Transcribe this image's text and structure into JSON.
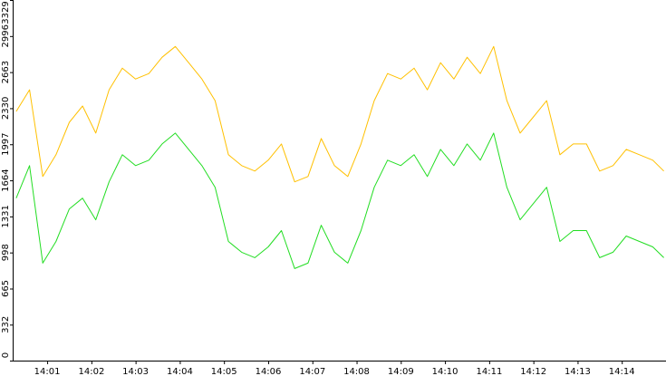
{
  "chart_data": {
    "type": "line",
    "title": "",
    "xlabel": "",
    "ylabel": "",
    "ylim": [
      0,
      3329
    ],
    "yticks": [
      0,
      332,
      665,
      998,
      1331,
      1664,
      1997,
      2330,
      2663,
      2996,
      3329
    ],
    "xlim_minutes": [
      840.24,
      855.0
    ],
    "xticks": [
      {
        "label": "14:01",
        "minute": 841
      },
      {
        "label": "14:02",
        "minute": 842
      },
      {
        "label": "14:03",
        "minute": 843
      },
      {
        "label": "14:04",
        "minute": 844
      },
      {
        "label": "14:05",
        "minute": 845
      },
      {
        "label": "14:06",
        "minute": 846
      },
      {
        "label": "14:07",
        "minute": 847
      },
      {
        "label": "14:08",
        "minute": 848
      },
      {
        "label": "14:09",
        "minute": 849
      },
      {
        "label": "14:10",
        "minute": 850
      },
      {
        "label": "14:11",
        "minute": 851
      },
      {
        "label": "14:12",
        "minute": 852
      },
      {
        "label": "14:13",
        "minute": 853
      },
      {
        "label": "14:14",
        "minute": 854
      }
    ],
    "grid": false,
    "legend": "none",
    "series": [
      {
        "color": "#ffc000",
        "minute": [
          840.3,
          840.6,
          840.9,
          841.2,
          841.5,
          841.8,
          842.1,
          842.4,
          842.7,
          843.0,
          843.3,
          843.6,
          843.9,
          844.2,
          844.5,
          844.8,
          845.1,
          845.4,
          845.7,
          846.0,
          846.3,
          846.6,
          846.9,
          847.2,
          847.5,
          847.8,
          848.1,
          848.4,
          848.7,
          849.0,
          849.3,
          849.6,
          849.9,
          850.2,
          850.5,
          850.8,
          851.1,
          851.4,
          851.7,
          852.0,
          852.3,
          852.6,
          852.9,
          853.2,
          853.5,
          853.8,
          854.1,
          854.4,
          854.7,
          854.95
        ],
        "values": [
          2300,
          2500,
          1700,
          1900,
          2200,
          2350,
          2100,
          2500,
          2700,
          2600,
          2650,
          2800,
          2900,
          2750,
          2600,
          2400,
          1900,
          1800,
          1750,
          1850,
          2000,
          1650,
          1700,
          2050,
          1800,
          1700,
          2000,
          2400,
          2650,
          2600,
          2700,
          2500,
          2750,
          2600,
          2800,
          2650,
          2900,
          2400,
          2100,
          2250,
          2400,
          1900,
          2000,
          2000,
          1750,
          1800,
          1950,
          1900,
          1850,
          1750
        ]
      },
      {
        "color": "#22dd22",
        "minute": [
          840.3,
          840.6,
          840.9,
          841.2,
          841.5,
          841.8,
          842.1,
          842.4,
          842.7,
          843.0,
          843.3,
          843.6,
          843.9,
          844.2,
          844.5,
          844.8,
          845.1,
          845.4,
          845.7,
          846.0,
          846.3,
          846.6,
          846.9,
          847.2,
          847.5,
          847.8,
          848.1,
          848.4,
          848.7,
          849.0,
          849.3,
          849.6,
          849.9,
          850.2,
          850.5,
          850.8,
          851.1,
          851.4,
          851.7,
          852.0,
          852.3,
          852.6,
          852.9,
          853.2,
          853.5,
          853.8,
          854.1,
          854.4,
          854.7,
          854.95
        ],
        "values": [
          1500,
          1800,
          900,
          1100,
          1400,
          1500,
          1300,
          1650,
          1900,
          1800,
          1850,
          2000,
          2100,
          1950,
          1800,
          1600,
          1100,
          1000,
          950,
          1050,
          1200,
          850,
          900,
          1250,
          1000,
          900,
          1200,
          1600,
          1850,
          1800,
          1900,
          1700,
          1950,
          1800,
          2000,
          1850,
          2100,
          1600,
          1300,
          1450,
          1600,
          1100,
          1200,
          1200,
          950,
          1000,
          1150,
          1100,
          1050,
          950
        ]
      }
    ]
  }
}
